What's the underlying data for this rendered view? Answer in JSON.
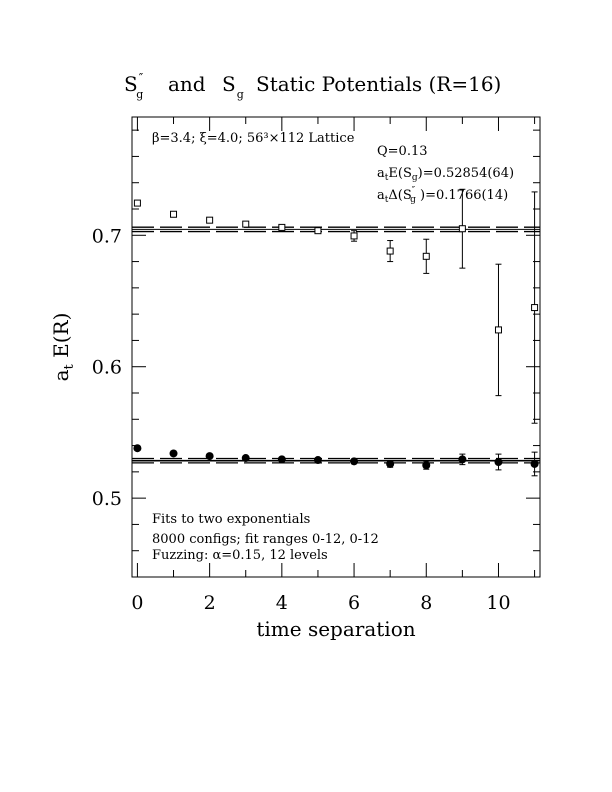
{
  "chart_data": {
    "type": "scatter",
    "title": {
      "part1_base": "S",
      "part1_sup": "″",
      "part1_sub": "g",
      "part2": "and",
      "part3_base": "S",
      "part3_sub": "g",
      "part4": "Static Potentials (R=16)"
    },
    "xlabel": "time separation",
    "ylabel": {
      "base": "a",
      "sub": "t",
      "rest": " E(R)"
    },
    "xlim": [
      -0.15,
      11.15
    ],
    "ylim": [
      0.44,
      0.79
    ],
    "x_ticks": [
      0,
      2,
      4,
      6,
      8,
      10
    ],
    "x_tick_labels": [
      "0",
      "2",
      "4",
      "6",
      "8",
      "10"
    ],
    "y_ticks": [
      0.5,
      0.6,
      0.7
    ],
    "y_tick_labels": [
      "0.5",
      "0.6",
      "0.7"
    ],
    "annotations": {
      "lattice": "β=3.4; ξ=4.0; 56³×112 Lattice",
      "q": "Q=0.13",
      "energy_fit": "aₜE(S₉)=0.52854(64)",
      "gap_fit": "aₜΔ(S″₉)=0.1766(14)",
      "note1": "Fits to two exponentials",
      "note2": "8000 configs; fit ranges 0-12, 0-12",
      "note3": "Fuzzing: α=0.15, 12 levels"
    },
    "annotation_parts": {
      "energy_a": "a",
      "energy_t": "t",
      "energy_mid": "E(S",
      "energy_g": "g",
      "energy_val": ")=0.52854(64)",
      "gap_a": "a",
      "gap_t": "t",
      "gap_mid": "Δ(S",
      "gap_sup": "″",
      "gap_g": "g",
      "gap_val": " )=0.1766(14)"
    },
    "series": [
      {
        "marker": "open-square",
        "fit": 0.7045,
        "points": [
          {
            "x": 0,
            "y": 0.7245,
            "err": 0.002
          },
          {
            "x": 1,
            "y": 0.716,
            "err": 0.002
          },
          {
            "x": 2,
            "y": 0.7115,
            "err": 0.002
          },
          {
            "x": 3,
            "y": 0.7085,
            "err": 0.002
          },
          {
            "x": 4,
            "y": 0.706,
            "err": 0.002
          },
          {
            "x": 5,
            "y": 0.7035,
            "err": 0.002
          },
          {
            "x": 6,
            "y": 0.6995,
            "err": 0.004
          },
          {
            "x": 7,
            "y": 0.688,
            "err": 0.008
          },
          {
            "x": 8,
            "y": 0.684,
            "err": 0.013
          },
          {
            "x": 9,
            "y": 0.705,
            "err": 0.03
          },
          {
            "x": 10,
            "y": 0.628,
            "err": 0.05
          },
          {
            "x": 11,
            "y": 0.645,
            "err": 0.088
          }
        ]
      },
      {
        "marker": "filled-circle",
        "fit": 0.5285,
        "points": [
          {
            "x": 0,
            "y": 0.538,
            "err": 0.0008
          },
          {
            "x": 1,
            "y": 0.534,
            "err": 0.0008
          },
          {
            "x": 2,
            "y": 0.532,
            "err": 0.001
          },
          {
            "x": 3,
            "y": 0.5305,
            "err": 0.001
          },
          {
            "x": 4,
            "y": 0.5295,
            "err": 0.0012
          },
          {
            "x": 5,
            "y": 0.529,
            "err": 0.0015
          },
          {
            "x": 6,
            "y": 0.528,
            "err": 0.0018
          },
          {
            "x": 7,
            "y": 0.526,
            "err": 0.0025
          },
          {
            "x": 8,
            "y": 0.525,
            "err": 0.003
          },
          {
            "x": 9,
            "y": 0.5295,
            "err": 0.004
          },
          {
            "x": 10,
            "y": 0.5275,
            "err": 0.006
          },
          {
            "x": 11,
            "y": 0.526,
            "err": 0.009
          }
        ]
      }
    ],
    "grid": false,
    "legend": "none"
  }
}
